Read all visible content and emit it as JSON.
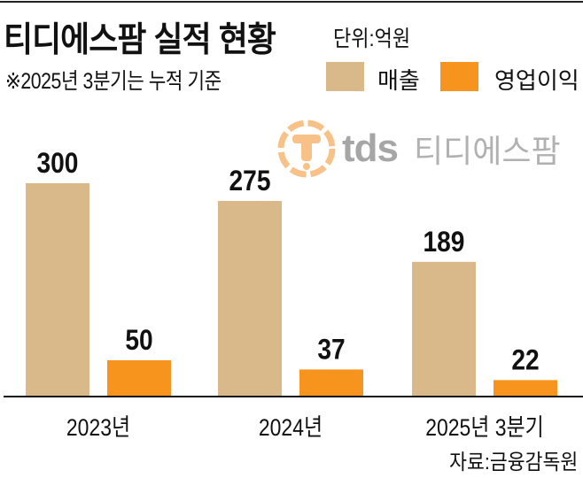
{
  "header": {
    "title": "티디에스팜 실적 현황",
    "unit": "단위:억원",
    "note": "※2025년 3분기는 누적 기준"
  },
  "logo": {
    "text": "tds",
    "name": "티디에스팜"
  },
  "source": "자료:금융감독원",
  "chart_data": {
    "type": "bar",
    "title": "티디에스팜 실적 현황",
    "unit": "억원",
    "categories": [
      "2023년",
      "2024년",
      "2025년 3분기"
    ],
    "series": [
      {
        "name": "매출",
        "color": "#d9b98a",
        "values": [
          300,
          275,
          189
        ]
      },
      {
        "name": "영업이익",
        "color": "#f7941d",
        "values": [
          50,
          37,
          22
        ]
      }
    ],
    "ylim": [
      0,
      300
    ],
    "grid": false,
    "legend": "top-right",
    "data_labels": true
  }
}
